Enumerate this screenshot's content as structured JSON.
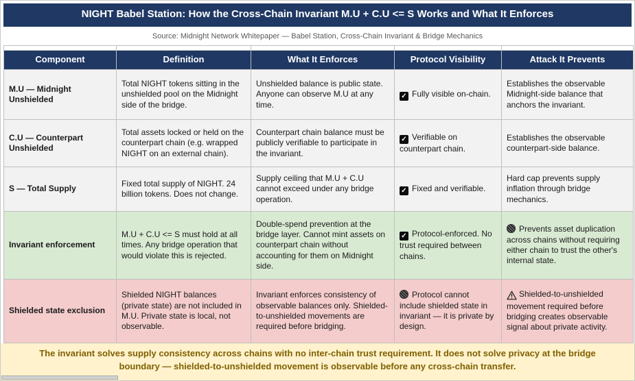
{
  "header": {
    "title": "NIGHT Babel Station: How the Cross-Chain Invariant M.U + C.U <= S Works and What It Enforces",
    "source": "Source: Midnight Network Whitepaper — Babel Station, Cross-Chain Invariant & Bridge Mechanics"
  },
  "chart_data": {
    "type": "table",
    "title": "NIGHT Babel Station: How the Cross-Chain Invariant M.U + C.U <= S Works and What It Enforces",
    "columns": [
      "Component",
      "Definition",
      "What It Enforces",
      "Protocol Visibility",
      "Attack It Prevents"
    ],
    "rows": [
      {
        "tint": "gray",
        "cells": {
          "component": "M.U — Midnight Unshielded",
          "definition": "Total NIGHT tokens sitting in the unshielded pool on the Midnight side of the bridge.",
          "what_it_enforces": "Unshielded balance is public state. Anyone can observe M.U at any time.",
          "protocol_visibility": {
            "icon": "checkbox-checked",
            "text": "Fully visible on-chain."
          },
          "attack_it_prevents": {
            "icon": "",
            "text": "Establishes the observable Midnight-side balance that anchors the invariant."
          }
        }
      },
      {
        "tint": "gray",
        "cells": {
          "component": "C.U — Counterpart Unshielded",
          "definition": "Total assets locked or held on the counterpart chain (e.g. wrapped NIGHT on an external chain).",
          "what_it_enforces": "Counterpart chain balance must be publicly verifiable to participate in the invariant.",
          "protocol_visibility": {
            "icon": "checkbox-checked",
            "text": "Verifiable on counterpart chain."
          },
          "attack_it_prevents": {
            "icon": "",
            "text": "Establishes the observable counterpart-side balance."
          }
        }
      },
      {
        "tint": "gray",
        "cells": {
          "component": "S — Total Supply",
          "definition": "Fixed total supply of NIGHT. 24 billion tokens. Does not change.",
          "what_it_enforces": "Supply ceiling that M.U + C.U cannot exceed under any bridge operation.",
          "protocol_visibility": {
            "icon": "checkbox-checked",
            "text": "Fixed and verifiable."
          },
          "attack_it_prevents": {
            "icon": "",
            "text": "Hard cap prevents supply inflation through bridge mechanics."
          }
        }
      },
      {
        "tint": "green",
        "cells": {
          "component": "Invariant enforcement",
          "definition": "M.U + C.U <= S must hold at all times. Any bridge operation that would violate this is rejected.",
          "what_it_enforces": "Double-spend prevention at the bridge layer. Cannot mint assets on counterpart chain without accounting for them on Midnight side.",
          "protocol_visibility": {
            "icon": "checkbox-checked",
            "text": "Protocol-enforced. No trust required between chains."
          },
          "attack_it_prevents": {
            "icon": "dark-globe",
            "text": "Prevents asset duplication across chains without requiring either chain to trust the other's internal state."
          }
        }
      },
      {
        "tint": "pink",
        "cells": {
          "component": "Shielded state exclusion",
          "definition": "Shielded NIGHT balances (private state) are not included in M.U. Private state is local, not observable.",
          "what_it_enforces": "Invariant enforces consistency of observable balances only. Shielded-to-unshielded movements are required before bridging.",
          "protocol_visibility": {
            "icon": "dark-globe",
            "text": "Protocol cannot include shielded state in invariant — it is private by design."
          },
          "attack_it_prevents": {
            "icon": "warning",
            "text": "Shielded-to-unshielded movement required before bridging creates observable signal about private activity."
          }
        }
      }
    ]
  },
  "footer": {
    "text": "The invariant solves supply consistency across chains with no inter-chain trust requirement. It does not solve privacy at the bridge boundary — shielded-to-unshielded movement is observable before any cross-chain transfer."
  },
  "icons": {
    "checkbox-checked": "✓",
    "dark-globe": "shaded circle",
    "warning": "⚠"
  },
  "colors": {
    "navy": "#1f3864",
    "rowGray": "#f2f2f2",
    "rowGreen": "#d9ead3",
    "rowPink": "#f4cccc",
    "footerBg": "#fff2cc",
    "footerText": "#7f6000",
    "border": "#bfbfbf"
  }
}
